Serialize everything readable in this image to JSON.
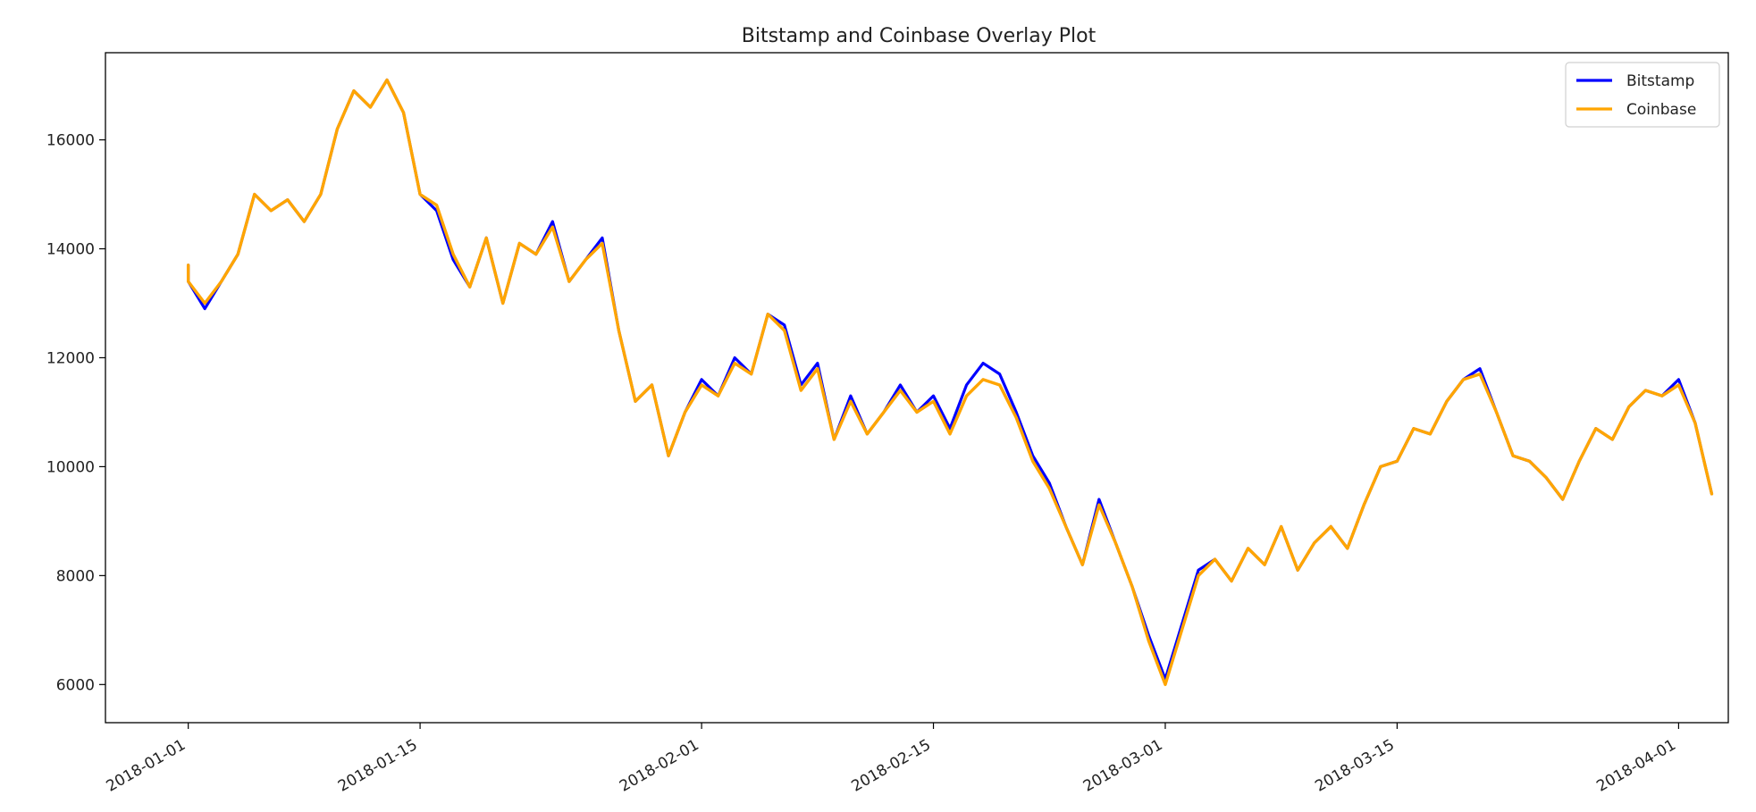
{
  "chart_data": {
    "type": "line",
    "title": "Bitstamp and Coinbase Overlay Plot",
    "xlabel": "",
    "ylabel": "",
    "x_ticks": [
      "2018-01-01",
      "2018-01-15",
      "2018-02-01",
      "2018-02-15",
      "2018-03-01",
      "2018-03-15",
      "2018-04-01"
    ],
    "y_ticks": [
      6000,
      8000,
      10000,
      12000,
      14000,
      16000
    ],
    "xlim": [
      "2017-12-27",
      "2018-04-04"
    ],
    "ylim": [
      5300,
      17600
    ],
    "grid": false,
    "legend_position": "top-right",
    "series": [
      {
        "name": "Bitstamp",
        "color": "#0000ff",
        "points": [
          [
            "2018-01-01",
            13700
          ],
          [
            "2018-01-01",
            13400
          ],
          [
            "2018-01-02",
            12900
          ],
          [
            "2018-01-03",
            13400
          ],
          [
            "2018-01-04",
            13900
          ],
          [
            "2018-01-05",
            15000
          ],
          [
            "2018-01-06",
            14700
          ],
          [
            "2018-01-07",
            14900
          ],
          [
            "2018-01-08",
            14500
          ],
          [
            "2018-01-09",
            15000
          ],
          [
            "2018-01-10",
            16200
          ],
          [
            "2018-01-11",
            16900
          ],
          [
            "2018-01-12",
            16600
          ],
          [
            "2018-01-13",
            17100
          ],
          [
            "2018-01-14",
            16500
          ],
          [
            "2018-01-15",
            15000
          ],
          [
            "2018-01-16",
            14700
          ],
          [
            "2018-01-17",
            13800
          ],
          [
            "2018-01-18",
            13300
          ],
          [
            "2018-01-19",
            14200
          ],
          [
            "2018-01-20",
            13000
          ],
          [
            "2018-01-21",
            14100
          ],
          [
            "2018-01-22",
            13900
          ],
          [
            "2018-01-23",
            14500
          ],
          [
            "2018-01-24",
            13400
          ],
          [
            "2018-01-25",
            13800
          ],
          [
            "2018-01-26",
            14200
          ],
          [
            "2018-01-27",
            12500
          ],
          [
            "2018-01-28",
            11200
          ],
          [
            "2018-01-29",
            11500
          ],
          [
            "2018-01-30",
            10200
          ],
          [
            "2018-01-31",
            11000
          ],
          [
            "2018-02-01",
            11600
          ],
          [
            "2018-02-02",
            11300
          ],
          [
            "2018-02-03",
            12000
          ],
          [
            "2018-02-04",
            11700
          ],
          [
            "2018-02-05",
            12800
          ],
          [
            "2018-02-06",
            12600
          ],
          [
            "2018-02-07",
            11500
          ],
          [
            "2018-02-08",
            11900
          ],
          [
            "2018-02-09",
            10500
          ],
          [
            "2018-02-10",
            11300
          ],
          [
            "2018-02-11",
            10600
          ],
          [
            "2018-02-12",
            11000
          ],
          [
            "2018-02-13",
            11500
          ],
          [
            "2018-02-14",
            11000
          ],
          [
            "2018-02-15",
            11300
          ],
          [
            "2018-02-16",
            10700
          ],
          [
            "2018-02-17",
            11500
          ],
          [
            "2018-02-18",
            11900
          ],
          [
            "2018-02-19",
            11700
          ],
          [
            "2018-02-20",
            11000
          ],
          [
            "2018-02-21",
            10200
          ],
          [
            "2018-02-22",
            9700
          ],
          [
            "2018-02-23",
            8900
          ],
          [
            "2018-02-24",
            8200
          ],
          [
            "2018-02-25",
            9400
          ],
          [
            "2018-02-26",
            8600
          ],
          [
            "2018-02-27",
            7800
          ],
          [
            "2018-02-28",
            6900
          ],
          [
            "2018-03-01",
            6100
          ],
          [
            "2018-03-02",
            7100
          ],
          [
            "2018-03-03",
            8100
          ],
          [
            "2018-03-04",
            8300
          ],
          [
            "2018-03-05",
            7900
          ],
          [
            "2018-03-06",
            8500
          ],
          [
            "2018-03-07",
            8200
          ],
          [
            "2018-03-08",
            8900
          ],
          [
            "2018-03-09",
            8100
          ],
          [
            "2018-03-10",
            8600
          ],
          [
            "2018-03-11",
            8900
          ],
          [
            "2018-03-12",
            8500
          ],
          [
            "2018-03-13",
            9300
          ],
          [
            "2018-03-14",
            10000
          ],
          [
            "2018-03-15",
            10100
          ],
          [
            "2018-03-16",
            10700
          ],
          [
            "2018-03-17",
            10600
          ],
          [
            "2018-03-18",
            11200
          ],
          [
            "2018-03-19",
            11600
          ],
          [
            "2018-03-20",
            11800
          ],
          [
            "2018-03-21",
            11000
          ],
          [
            "2018-03-22",
            10200
          ],
          [
            "2018-03-23",
            10100
          ],
          [
            "2018-03-24",
            9800
          ],
          [
            "2018-03-25",
            9400
          ],
          [
            "2018-03-26",
            10100
          ],
          [
            "2018-03-27",
            10700
          ],
          [
            "2018-03-28",
            10500
          ],
          [
            "2018-03-29",
            11100
          ],
          [
            "2018-03-30",
            11400
          ],
          [
            "2018-03-31",
            11300
          ],
          [
            "2018-04-01",
            11600
          ],
          [
            "2018-04-02",
            10800
          ],
          [
            "2018-04-03",
            9500
          ]
        ]
      },
      {
        "name": "Coinbase",
        "color": "#ffa500",
        "points": [
          [
            "2018-01-01",
            13700
          ],
          [
            "2018-01-01",
            13400
          ],
          [
            "2018-01-02",
            13000
          ],
          [
            "2018-01-03",
            13400
          ],
          [
            "2018-01-04",
            13900
          ],
          [
            "2018-01-05",
            15000
          ],
          [
            "2018-01-06",
            14700
          ],
          [
            "2018-01-07",
            14900
          ],
          [
            "2018-01-08",
            14500
          ],
          [
            "2018-01-09",
            15000
          ],
          [
            "2018-01-10",
            16200
          ],
          [
            "2018-01-11",
            16900
          ],
          [
            "2018-01-12",
            16600
          ],
          [
            "2018-01-13",
            17100
          ],
          [
            "2018-01-14",
            16500
          ],
          [
            "2018-01-15",
            15000
          ],
          [
            "2018-01-16",
            14800
          ],
          [
            "2018-01-17",
            13900
          ],
          [
            "2018-01-18",
            13300
          ],
          [
            "2018-01-19",
            14200
          ],
          [
            "2018-01-20",
            13000
          ],
          [
            "2018-01-21",
            14100
          ],
          [
            "2018-01-22",
            13900
          ],
          [
            "2018-01-23",
            14400
          ],
          [
            "2018-01-24",
            13400
          ],
          [
            "2018-01-25",
            13800
          ],
          [
            "2018-01-26",
            14100
          ],
          [
            "2018-01-27",
            12500
          ],
          [
            "2018-01-28",
            11200
          ],
          [
            "2018-01-29",
            11500
          ],
          [
            "2018-01-30",
            10200
          ],
          [
            "2018-01-31",
            11000
          ],
          [
            "2018-02-01",
            11500
          ],
          [
            "2018-02-02",
            11300
          ],
          [
            "2018-02-03",
            11900
          ],
          [
            "2018-02-04",
            11700
          ],
          [
            "2018-02-05",
            12800
          ],
          [
            "2018-02-06",
            12500
          ],
          [
            "2018-02-07",
            11400
          ],
          [
            "2018-02-08",
            11800
          ],
          [
            "2018-02-09",
            10500
          ],
          [
            "2018-02-10",
            11200
          ],
          [
            "2018-02-11",
            10600
          ],
          [
            "2018-02-12",
            11000
          ],
          [
            "2018-02-13",
            11400
          ],
          [
            "2018-02-14",
            11000
          ],
          [
            "2018-02-15",
            11200
          ],
          [
            "2018-02-16",
            10600
          ],
          [
            "2018-02-17",
            11300
          ],
          [
            "2018-02-18",
            11600
          ],
          [
            "2018-02-19",
            11500
          ],
          [
            "2018-02-20",
            10900
          ],
          [
            "2018-02-21",
            10100
          ],
          [
            "2018-02-22",
            9600
          ],
          [
            "2018-02-23",
            8900
          ],
          [
            "2018-02-24",
            8200
          ],
          [
            "2018-02-25",
            9300
          ],
          [
            "2018-02-26",
            8600
          ],
          [
            "2018-02-27",
            7800
          ],
          [
            "2018-02-28",
            6800
          ],
          [
            "2018-03-01",
            6000
          ],
          [
            "2018-03-02",
            7000
          ],
          [
            "2018-03-03",
            8000
          ],
          [
            "2018-03-04",
            8300
          ],
          [
            "2018-03-05",
            7900
          ],
          [
            "2018-03-06",
            8500
          ],
          [
            "2018-03-07",
            8200
          ],
          [
            "2018-03-08",
            8900
          ],
          [
            "2018-03-09",
            8100
          ],
          [
            "2018-03-10",
            8600
          ],
          [
            "2018-03-11",
            8900
          ],
          [
            "2018-03-12",
            8500
          ],
          [
            "2018-03-13",
            9300
          ],
          [
            "2018-03-14",
            10000
          ],
          [
            "2018-03-15",
            10100
          ],
          [
            "2018-03-16",
            10700
          ],
          [
            "2018-03-17",
            10600
          ],
          [
            "2018-03-18",
            11200
          ],
          [
            "2018-03-19",
            11600
          ],
          [
            "2018-03-20",
            11700
          ],
          [
            "2018-03-21",
            11000
          ],
          [
            "2018-03-22",
            10200
          ],
          [
            "2018-03-23",
            10100
          ],
          [
            "2018-03-24",
            9800
          ],
          [
            "2018-03-25",
            9400
          ],
          [
            "2018-03-26",
            10100
          ],
          [
            "2018-03-27",
            10700
          ],
          [
            "2018-03-28",
            10500
          ],
          [
            "2018-03-29",
            11100
          ],
          [
            "2018-03-30",
            11400
          ],
          [
            "2018-03-31",
            11300
          ],
          [
            "2018-04-01",
            11500
          ],
          [
            "2018-04-02",
            10800
          ],
          [
            "2018-04-03",
            9500
          ]
        ]
      }
    ]
  }
}
